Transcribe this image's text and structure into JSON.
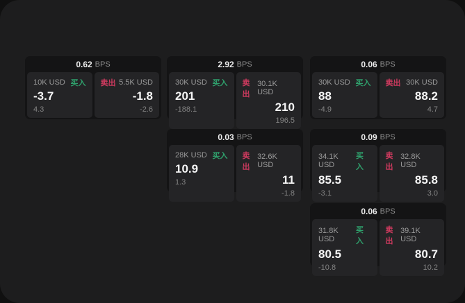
{
  "colors": {
    "buy_green": "#2fa06c",
    "sell_red": "#cc3a5e"
  },
  "cards": [
    {
      "bps": "0.62",
      "bps_unit": "BPS",
      "buy": {
        "amount": "10K USD",
        "label": "买入",
        "value": "-3.7",
        "sub": "4.3"
      },
      "sell": {
        "label": "卖出",
        "amount": "5.5K USD",
        "value": "-1.8",
        "sub": "-2.6"
      }
    },
    {
      "bps": "2.92",
      "bps_unit": "BPS",
      "buy": {
        "amount": "30K USD",
        "label": "买入",
        "value": "201",
        "sub": "-188.1"
      },
      "sell": {
        "label": "卖出",
        "amount": "30.1K USD",
        "value": "210",
        "sub": "196.5"
      }
    },
    {
      "bps": "0.06",
      "bps_unit": "BPS",
      "buy": {
        "amount": "30K USD",
        "label": "买入",
        "value": "88",
        "sub": "-4.9"
      },
      "sell": {
        "label": "卖出",
        "amount": "30K USD",
        "value": "88.2",
        "sub": "4.7"
      }
    },
    {
      "bps": "0.03",
      "bps_unit": "BPS",
      "buy": {
        "amount": "28K USD",
        "label": "买入",
        "value": "10.9",
        "sub": "1.3"
      },
      "sell": {
        "label": "卖出",
        "amount": "32.6K USD",
        "value": "11",
        "sub": "-1.8"
      }
    },
    {
      "bps": "0.09",
      "bps_unit": "BPS",
      "buy": {
        "amount": "34.1K USD",
        "label": "买入",
        "value": "85.5",
        "sub": "-3.1"
      },
      "sell": {
        "label": "卖出",
        "amount": "32.8K USD",
        "value": "85.8",
        "sub": "3.0"
      }
    },
    {
      "bps": "0.06",
      "bps_unit": "BPS",
      "buy": {
        "amount": "31.8K USD",
        "label": "买入",
        "value": "80.5",
        "sub": "-10.8"
      },
      "sell": {
        "label": "卖出",
        "amount": "39.1K USD",
        "value": "80.7",
        "sub": "10.2"
      }
    }
  ]
}
